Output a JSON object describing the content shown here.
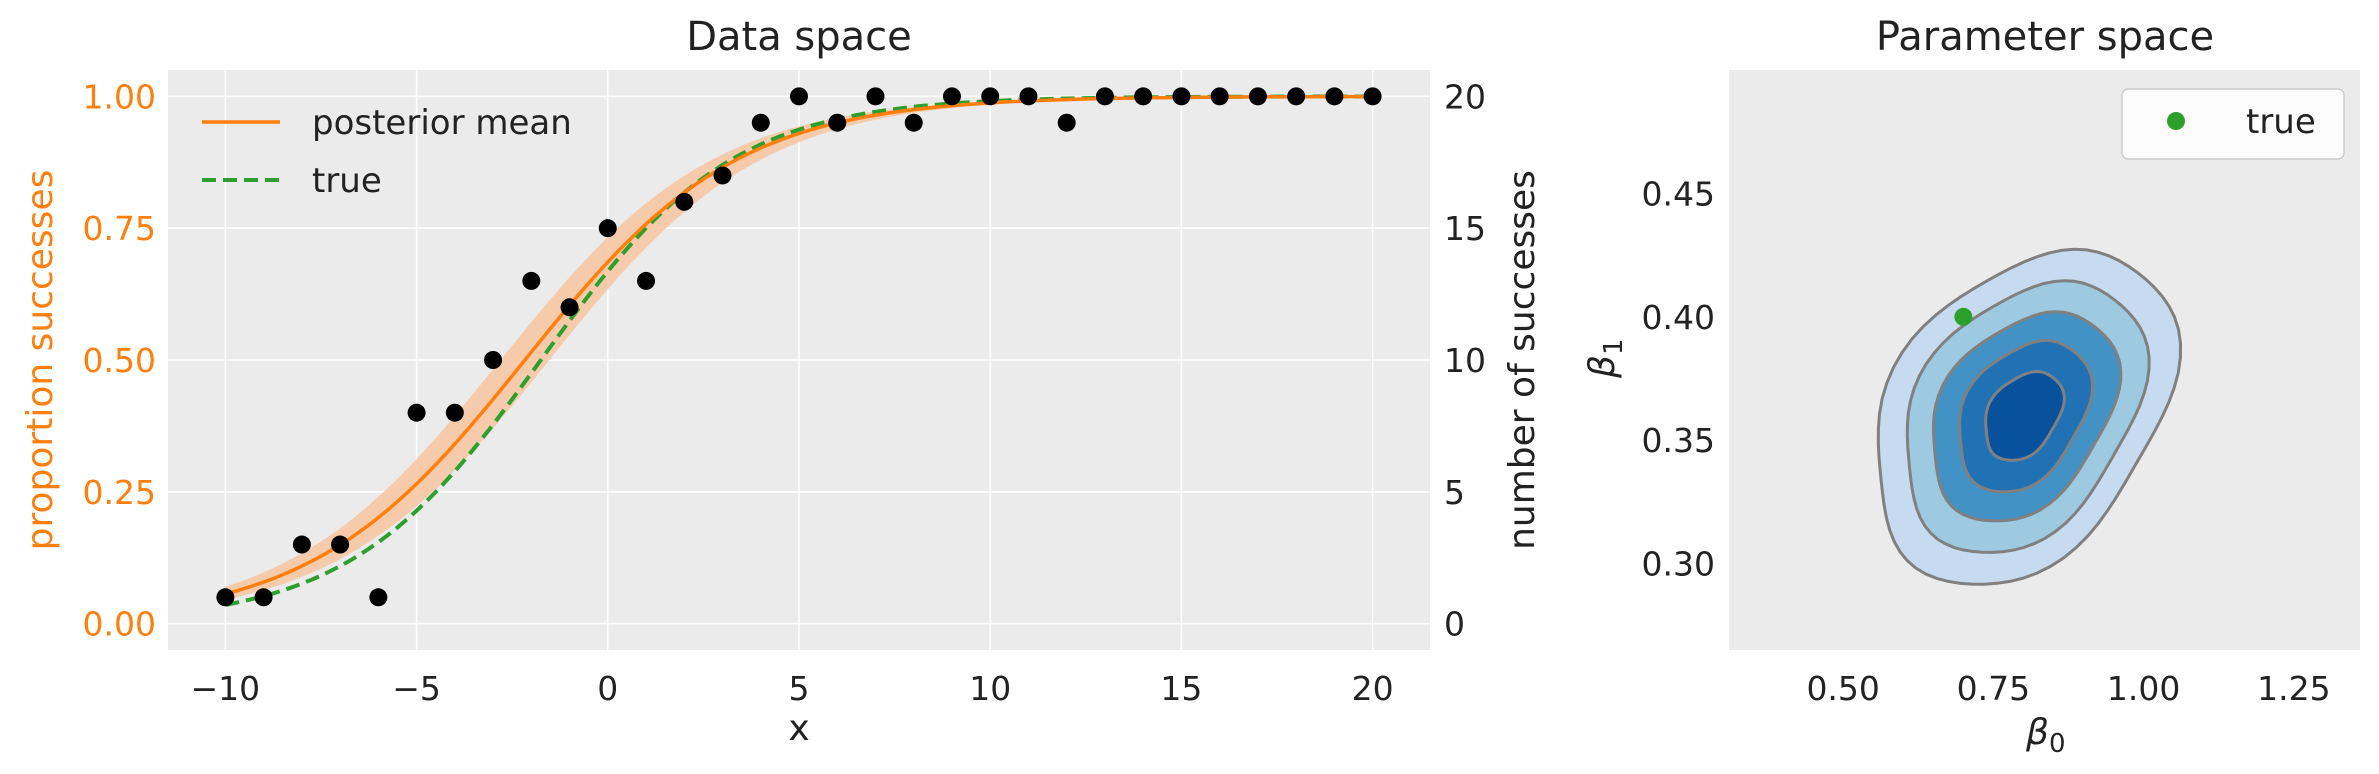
{
  "chart_data": [
    {
      "type": "line",
      "title": "Data space",
      "xlabel": "x",
      "ylabel": "proportion successes",
      "y2label": "number of successes",
      "xlim": [
        -11.5,
        21.5
      ],
      "ylim": [
        -0.05,
        1.05
      ],
      "y2lim": [
        -1,
        21
      ],
      "xticks": [
        "−10",
        "−5",
        "0",
        "5",
        "10",
        "15",
        "20"
      ],
      "xtick_values": [
        -10,
        -5,
        0,
        5,
        10,
        15,
        20
      ],
      "yticks": [
        "0.00",
        "0.25",
        "0.50",
        "0.75",
        "1.00"
      ],
      "ytick_values": [
        0,
        0.25,
        0.5,
        0.75,
        1.0
      ],
      "y2ticks": [
        "0",
        "5",
        "10",
        "15",
        "20"
      ],
      "y2tick_values": [
        0,
        5,
        10,
        15,
        20
      ],
      "grid": true,
      "legend": {
        "placement": "top-left",
        "entries": [
          {
            "label": "posterior mean",
            "color": "#ff7f0e",
            "style": "solid"
          },
          {
            "label": "true",
            "color": "#2ca02c",
            "style": "dashed"
          }
        ]
      },
      "series": [
        {
          "name": "posterior mean",
          "kind": "logistic-curve",
          "color": "#ff7f0e",
          "intercept": 0.78,
          "slope": 0.36,
          "band": {
            "color": "#f6c8a4",
            "lower_intercept": 0.55,
            "upper_intercept": 1.01
          }
        },
        {
          "name": "true",
          "kind": "logistic-curve",
          "color": "#2ca02c",
          "dashed": true,
          "intercept": 0.7,
          "slope": 0.4
        },
        {
          "name": "observations",
          "kind": "scatter",
          "color": "#000000",
          "x": [
            -10,
            -9,
            -8,
            -7,
            -6,
            -5,
            -4,
            -3,
            -2,
            -1,
            0,
            1,
            2,
            3,
            4,
            5,
            6,
            7,
            8,
            9,
            10,
            11,
            12,
            13,
            14,
            15,
            16,
            17,
            18,
            19,
            20
          ],
          "y": [
            1,
            1,
            3,
            3,
            1,
            8,
            8,
            10,
            13,
            12,
            15,
            13,
            16,
            17,
            19,
            20,
            19,
            20,
            19,
            20,
            20,
            20,
            19,
            20,
            20,
            20,
            20,
            20,
            20,
            20,
            20
          ]
        }
      ]
    },
    {
      "type": "contour",
      "title": "Parameter space",
      "xlabel": "β",
      "xlabel_sub": "0",
      "ylabel": "β",
      "ylabel_sub": "1",
      "xlim": [
        0.31,
        1.36
      ],
      "ylim": [
        0.265,
        0.5
      ],
      "xticks": [
        "0.50",
        "0.75",
        "1.00",
        "1.25"
      ],
      "xtick_values": [
        0.5,
        0.75,
        1.0,
        1.25
      ],
      "yticks": [
        "0.30",
        "0.35",
        "0.40",
        "0.45"
      ],
      "ytick_values": [
        0.3,
        0.35,
        0.4,
        0.45
      ],
      "grid": false,
      "density": {
        "center": [
          0.8,
          0.36
        ],
        "levels": [
          {
            "rx": 0.25,
            "ry": 0.064,
            "fill": "#c6dbef"
          },
          {
            "rx": 0.2,
            "ry": 0.052,
            "fill": "#9ecae1"
          },
          {
            "rx": 0.155,
            "ry": 0.04,
            "fill": "#4292c6"
          },
          {
            "rx": 0.11,
            "ry": 0.029,
            "fill": "#2171b5"
          },
          {
            "rx": 0.065,
            "ry": 0.017,
            "fill": "#08519c"
          }
        ],
        "line_color": "#808080"
      },
      "legend": {
        "placement": "top-right",
        "entries": [
          {
            "label": "true",
            "color": "#2ca02c",
            "marker": "circle"
          }
        ]
      },
      "points": [
        {
          "name": "true",
          "x": 0.7,
          "y": 0.4,
          "color": "#2ca02c"
        }
      ]
    }
  ]
}
